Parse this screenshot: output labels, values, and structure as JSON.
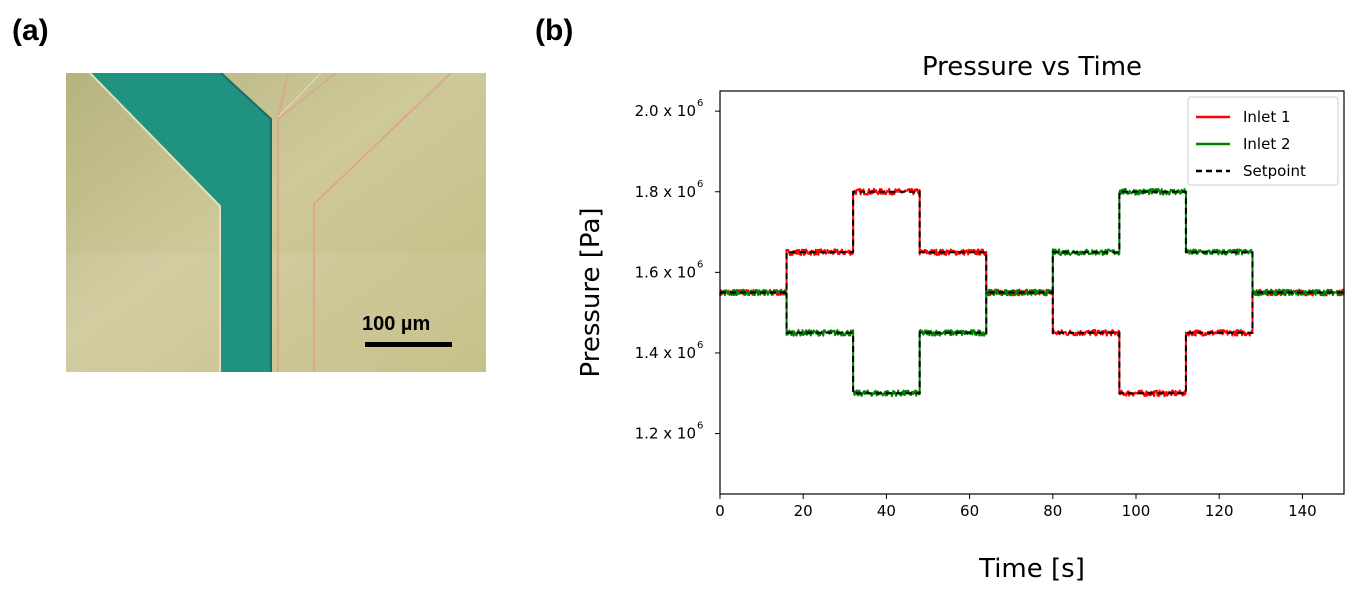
{
  "panels": {
    "a_label": "(a)",
    "b_label": "(b)"
  },
  "micrograph": {
    "scale_bar_label": "100 µm",
    "colors": {
      "background": "#c9c48e",
      "channel": "#1f9280",
      "wall_line": "#d9a98a"
    }
  },
  "chart_data": {
    "type": "line",
    "title": "Pressure vs Time",
    "xlabel": "Time [s]",
    "ylabel": "Pressure [Pa]",
    "xlim": [
      0,
      150
    ],
    "ylim": [
      1050000,
      2050000
    ],
    "xticks": [
      0,
      20,
      40,
      60,
      80,
      100,
      120,
      140
    ],
    "yticks": [
      {
        "value": 1200000,
        "mantissa": "1.2 x 10",
        "exponent": "6"
      },
      {
        "value": 1400000,
        "mantissa": "1.4 x 10",
        "exponent": "6"
      },
      {
        "value": 1600000,
        "mantissa": "1.6 x 10",
        "exponent": "6"
      },
      {
        "value": 1800000,
        "mantissa": "1.8 x 10",
        "exponent": "6"
      },
      {
        "value": 2000000,
        "mantissa": "2.0 x 10",
        "exponent": "6"
      }
    ],
    "legend_position": "top-right",
    "series": [
      {
        "name": "Inlet 1",
        "color": "#ff0000",
        "style": "solid",
        "segments": [
          {
            "t0": 0,
            "t1": 16,
            "value": 1550000
          },
          {
            "t0": 16,
            "t1": 32,
            "value": 1650000
          },
          {
            "t0": 32,
            "t1": 48,
            "value": 1800000
          },
          {
            "t0": 48,
            "t1": 64,
            "value": 1650000
          },
          {
            "t0": 64,
            "t1": 80,
            "value": 1550000
          },
          {
            "t0": 80,
            "t1": 96,
            "value": 1450000
          },
          {
            "t0": 96,
            "t1": 112,
            "value": 1300000
          },
          {
            "t0": 112,
            "t1": 128,
            "value": 1450000
          },
          {
            "t0": 128,
            "t1": 150,
            "value": 1550000
          }
        ]
      },
      {
        "name": "Inlet 2",
        "color": "#008000",
        "style": "solid",
        "segments": [
          {
            "t0": 0,
            "t1": 16,
            "value": 1550000
          },
          {
            "t0": 16,
            "t1": 32,
            "value": 1450000
          },
          {
            "t0": 32,
            "t1": 48,
            "value": 1300000
          },
          {
            "t0": 48,
            "t1": 64,
            "value": 1450000
          },
          {
            "t0": 64,
            "t1": 80,
            "value": 1550000
          },
          {
            "t0": 80,
            "t1": 96,
            "value": 1650000
          },
          {
            "t0": 96,
            "t1": 112,
            "value": 1800000
          },
          {
            "t0": 112,
            "t1": 128,
            "value": 1650000
          },
          {
            "t0": 128,
            "t1": 150,
            "value": 1550000
          }
        ]
      },
      {
        "name": "Setpoint",
        "color": "#000000",
        "style": "dashed",
        "segments": [
          {
            "t0": 0,
            "t1": 16,
            "value": 1550000
          },
          {
            "t0": 16,
            "t1": 32,
            "value": 1650000
          },
          {
            "t0": 32,
            "t1": 48,
            "value": 1800000
          },
          {
            "t0": 48,
            "t1": 64,
            "value": 1650000
          },
          {
            "t0": 64,
            "t1": 80,
            "value": 1550000
          },
          {
            "t0": 80,
            "t1": 96,
            "value": 1450000
          },
          {
            "t0": 96,
            "t1": 112,
            "value": 1300000
          },
          {
            "t0": 112,
            "t1": 128,
            "value": 1450000
          },
          {
            "t0": 128,
            "t1": 150,
            "value": 1550000
          }
        ],
        "mirror_segments": [
          {
            "t0": 16,
            "t1": 32,
            "value": 1450000
          },
          {
            "t0": 32,
            "t1": 48,
            "value": 1300000
          },
          {
            "t0": 48,
            "t1": 64,
            "value": 1450000
          },
          {
            "t0": 80,
            "t1": 96,
            "value": 1650000
          },
          {
            "t0": 96,
            "t1": 112,
            "value": 1800000
          },
          {
            "t0": 112,
            "t1": 128,
            "value": 1650000
          }
        ]
      }
    ]
  }
}
